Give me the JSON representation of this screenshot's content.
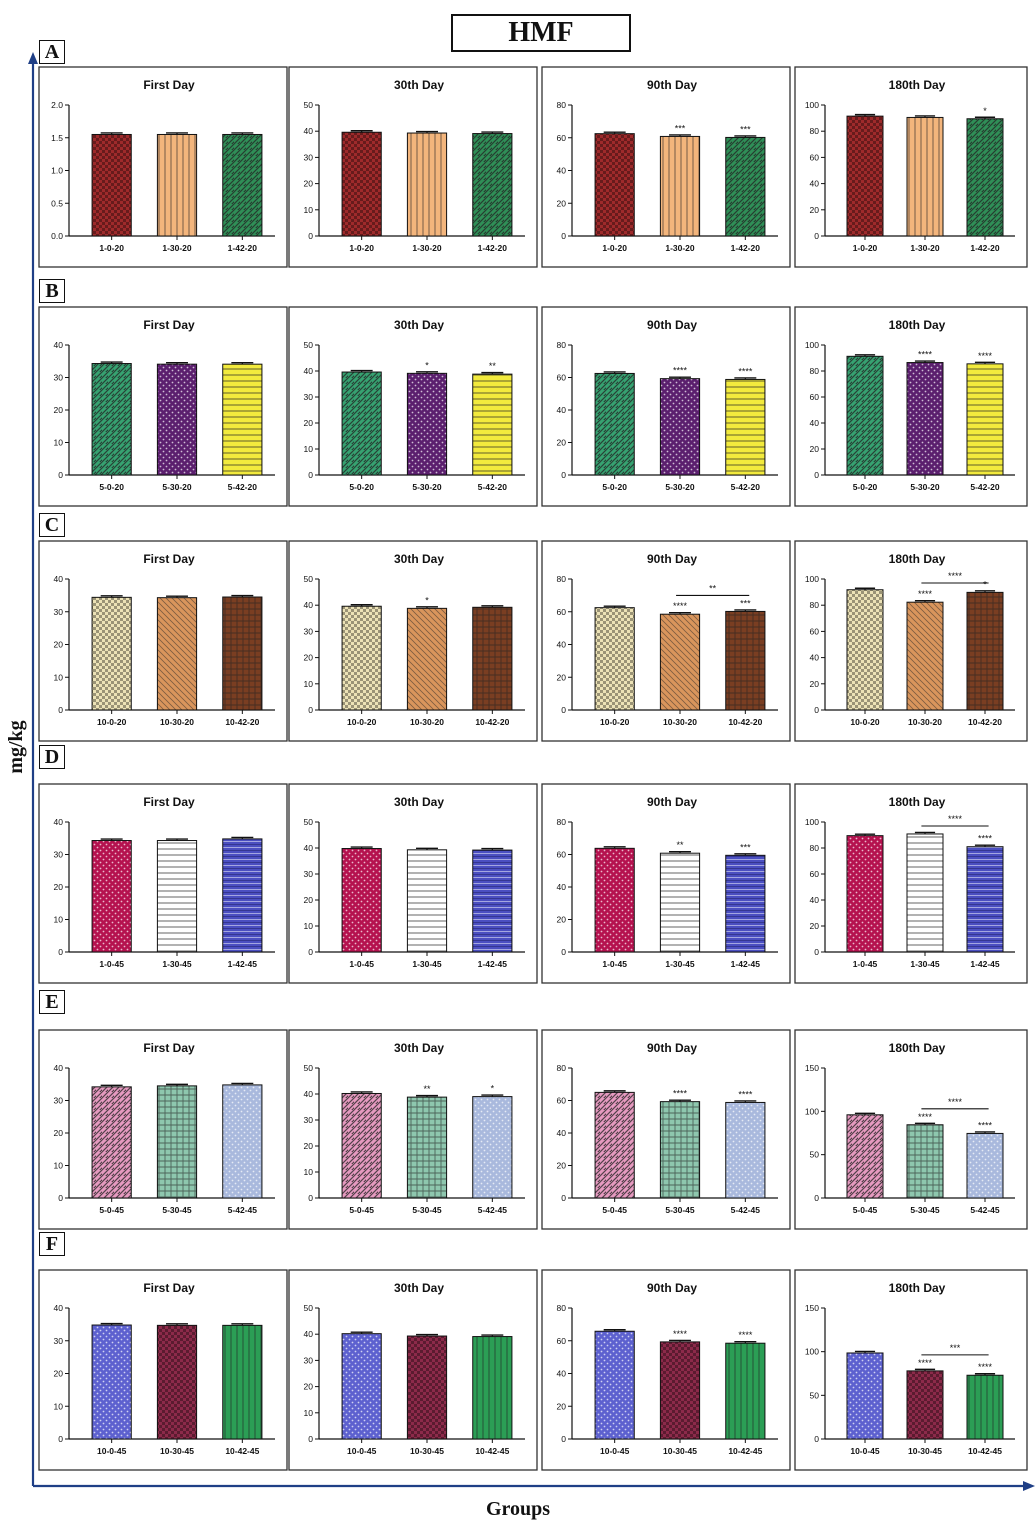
{
  "figure": {
    "title": "HMF",
    "ylabel": "mg/kg",
    "xlabel": "Groups",
    "panels": [
      "A",
      "B",
      "C",
      "D",
      "E",
      "F"
    ]
  },
  "colors": {
    "A": [
      "#9e2a2b",
      "#f3b57c",
      "#2f8f57"
    ],
    "B": [
      "#36a271",
      "#5b1f6e",
      "#f2ea3d"
    ],
    "C": [
      "#ece2b6",
      "#d9955c",
      "#7a3e22"
    ],
    "D": [
      "#b5124f",
      "#ffffff",
      "#4b4fc1"
    ],
    "E": [
      "#e69ac0",
      "#8ec7ae",
      "#a9b9dd"
    ],
    "F": [
      "#5d61cf",
      "#8c2a4a",
      "#2b9e55"
    ]
  },
  "chart_data": [
    {
      "type": "bar",
      "panel": "A",
      "title": "First Day",
      "categories": [
        "1-0-20",
        "1-30-20",
        "1-42-20"
      ],
      "values": [
        1.55,
        1.55,
        1.55
      ],
      "ylim": [
        0,
        2.0
      ],
      "yticks": [
        "0.0",
        "0.5",
        "1.0",
        "1.5",
        "2.0"
      ],
      "annotations": [
        "",
        "",
        ""
      ]
    },
    {
      "type": "bar",
      "panel": "A",
      "title": "30th Day",
      "categories": [
        "1-0-20",
        "1-30-20",
        "1-42-20"
      ],
      "values": [
        39.6,
        39.3,
        39.1
      ],
      "ylim": [
        0,
        50
      ],
      "yticks": [
        "0",
        "10",
        "20",
        "30",
        "40",
        "50"
      ],
      "annotations": [
        "",
        "",
        ""
      ]
    },
    {
      "type": "bar",
      "panel": "A",
      "title": "90th Day",
      "categories": [
        "1-0-20",
        "1-30-20",
        "1-42-20"
      ],
      "values": [
        62.5,
        60.8,
        60.2
      ],
      "ylim": [
        0,
        80
      ],
      "yticks": [
        "0",
        "20",
        "40",
        "60",
        "80"
      ],
      "annotations": [
        "",
        "***",
        "***"
      ]
    },
    {
      "type": "bar",
      "panel": "A",
      "title": "180th Day",
      "categories": [
        "1-0-20",
        "1-30-20",
        "1-42-20"
      ],
      "values": [
        91.5,
        90.5,
        89.5
      ],
      "ylim": [
        0,
        100
      ],
      "yticks": [
        "0",
        "20",
        "40",
        "60",
        "80",
        "100"
      ],
      "annotations": [
        "",
        "",
        "*"
      ]
    },
    {
      "type": "bar",
      "panel": "B",
      "title": "First Day",
      "categories": [
        "5-0-20",
        "5-30-20",
        "5-42-20"
      ],
      "values": [
        34.3,
        34.1,
        34.1
      ],
      "ylim": [
        0,
        40
      ],
      "yticks": [
        "0",
        "10",
        "20",
        "30",
        "40"
      ],
      "annotations": [
        "",
        "",
        ""
      ]
    },
    {
      "type": "bar",
      "panel": "B",
      "title": "30th Day",
      "categories": [
        "5-0-20",
        "5-30-20",
        "5-42-20"
      ],
      "values": [
        39.6,
        39.1,
        38.8
      ],
      "ylim": [
        0,
        50
      ],
      "yticks": [
        "0",
        "10",
        "20",
        "30",
        "40",
        "50"
      ],
      "annotations": [
        "",
        "*",
        "**"
      ]
    },
    {
      "type": "bar",
      "panel": "B",
      "title": "90th Day",
      "categories": [
        "5-0-20",
        "5-30-20",
        "5-42-20"
      ],
      "values": [
        62.5,
        59.3,
        58.8
      ],
      "ylim": [
        0,
        80
      ],
      "yticks": [
        "0",
        "20",
        "40",
        "60",
        "80"
      ],
      "annotations": [
        "",
        "****",
        "****"
      ]
    },
    {
      "type": "bar",
      "panel": "B",
      "title": "180th Day",
      "categories": [
        "5-0-20",
        "5-30-20",
        "5-42-20"
      ],
      "values": [
        91.3,
        86.5,
        85.5
      ],
      "ylim": [
        0,
        100
      ],
      "yticks": [
        "0",
        "20",
        "40",
        "60",
        "80",
        "100"
      ],
      "annotations": [
        "",
        "****",
        "****"
      ]
    },
    {
      "type": "bar",
      "panel": "C",
      "title": "First Day",
      "categories": [
        "10-0-20",
        "10-30-20",
        "10-42-20"
      ],
      "values": [
        34.4,
        34.3,
        34.5
      ],
      "ylim": [
        0,
        40
      ],
      "yticks": [
        "0",
        "10",
        "20",
        "30",
        "40"
      ],
      "annotations": [
        "",
        "",
        ""
      ]
    },
    {
      "type": "bar",
      "panel": "C",
      "title": "30th Day",
      "categories": [
        "10-0-20",
        "10-30-20",
        "10-42-20"
      ],
      "values": [
        39.6,
        38.8,
        39.2
      ],
      "ylim": [
        0,
        50
      ],
      "yticks": [
        "0",
        "10",
        "20",
        "30",
        "40",
        "50"
      ],
      "annotations": [
        "",
        "*",
        ""
      ]
    },
    {
      "type": "bar",
      "panel": "C",
      "title": "90th Day",
      "categories": [
        "10-0-20",
        "10-30-20",
        "10-42-20"
      ],
      "values": [
        62.5,
        58.5,
        60.2
      ],
      "ylim": [
        0,
        80
      ],
      "yticks": [
        "0",
        "20",
        "40",
        "60",
        "80"
      ],
      "annotations": [
        "",
        "****",
        "***"
      ],
      "bracket": {
        "from": 1,
        "to": 2,
        "label": "**"
      }
    },
    {
      "type": "bar",
      "panel": "C",
      "title": "180th Day",
      "categories": [
        "10-0-20",
        "10-30-20",
        "10-42-20"
      ],
      "values": [
        91.8,
        82.3,
        89.8
      ],
      "ylim": [
        0,
        100
      ],
      "yticks": [
        "0",
        "20",
        "40",
        "60",
        "80",
        "100"
      ],
      "annotations": [
        "",
        "****",
        "*"
      ],
      "bracket": {
        "from": 1,
        "to": 2,
        "label": "****"
      }
    },
    {
      "type": "bar",
      "panel": "D",
      "title": "First Day",
      "categories": [
        "1-0-45",
        "1-30-45",
        "1-42-45"
      ],
      "values": [
        34.3,
        34.3,
        34.8
      ],
      "ylim": [
        0,
        40
      ],
      "yticks": [
        "0",
        "10",
        "20",
        "30",
        "40"
      ],
      "annotations": [
        "",
        "",
        ""
      ]
    },
    {
      "type": "bar",
      "panel": "D",
      "title": "30th Day",
      "categories": [
        "1-0-45",
        "1-30-45",
        "1-42-45"
      ],
      "values": [
        39.8,
        39.3,
        39.2
      ],
      "ylim": [
        0,
        50
      ],
      "yticks": [
        "0",
        "10",
        "20",
        "30",
        "40",
        "50"
      ],
      "annotations": [
        "",
        "",
        ""
      ]
    },
    {
      "type": "bar",
      "panel": "D",
      "title": "90th Day",
      "categories": [
        "1-0-45",
        "1-30-45",
        "1-42-45"
      ],
      "values": [
        63.8,
        60.8,
        59.5
      ],
      "ylim": [
        0,
        80
      ],
      "yticks": [
        "0",
        "20",
        "40",
        "60",
        "80"
      ],
      "annotations": [
        "",
        "**",
        "***"
      ]
    },
    {
      "type": "bar",
      "panel": "D",
      "title": "180th Day",
      "categories": [
        "1-0-45",
        "1-30-45",
        "1-42-45"
      ],
      "values": [
        89.5,
        90.8,
        81.0
      ],
      "ylim": [
        0,
        100
      ],
      "yticks": [
        "0",
        "20",
        "40",
        "60",
        "80",
        "100"
      ],
      "annotations": [
        "",
        "",
        "****"
      ],
      "bracket": {
        "from": 1,
        "to": 2,
        "label": "****"
      }
    },
    {
      "type": "bar",
      "panel": "E",
      "title": "First Day",
      "categories": [
        "5-0-45",
        "5-30-45",
        "5-42-45"
      ],
      "values": [
        34.2,
        34.5,
        34.8
      ],
      "ylim": [
        0,
        40
      ],
      "yticks": [
        "0",
        "10",
        "20",
        "30",
        "40"
      ],
      "annotations": [
        "",
        "",
        ""
      ]
    },
    {
      "type": "bar",
      "panel": "E",
      "title": "30th Day",
      "categories": [
        "5-0-45",
        "5-30-45",
        "5-42-45"
      ],
      "values": [
        40.2,
        38.8,
        39.0
      ],
      "ylim": [
        0,
        50
      ],
      "yticks": [
        "0",
        "10",
        "20",
        "30",
        "40",
        "50"
      ],
      "annotations": [
        "",
        "**",
        "*"
      ]
    },
    {
      "type": "bar",
      "panel": "E",
      "title": "90th Day",
      "categories": [
        "5-0-45",
        "5-30-45",
        "5-42-45"
      ],
      "values": [
        65.0,
        59.3,
        58.8
      ],
      "ylim": [
        0,
        80
      ],
      "yticks": [
        "0",
        "20",
        "40",
        "60",
        "80"
      ],
      "annotations": [
        "",
        "****",
        "****"
      ]
    },
    {
      "type": "bar",
      "panel": "E",
      "title": "180th Day",
      "categories": [
        "5-0-45",
        "5-30-45",
        "5-42-45"
      ],
      "values": [
        96.0,
        84.5,
        74.5
      ],
      "ylim": [
        0,
        150
      ],
      "yticks": [
        "0",
        "50",
        "100",
        "150"
      ],
      "annotations": [
        "",
        "****",
        "****"
      ],
      "bracket": {
        "from": 1,
        "to": 2,
        "label": "****"
      }
    },
    {
      "type": "bar",
      "panel": "F",
      "title": "First Day",
      "categories": [
        "10-0-45",
        "10-30-45",
        "10-42-45"
      ],
      "values": [
        34.8,
        34.7,
        34.7
      ],
      "ylim": [
        0,
        40
      ],
      "yticks": [
        "0",
        "10",
        "20",
        "30",
        "40"
      ],
      "annotations": [
        "",
        "",
        ""
      ]
    },
    {
      "type": "bar",
      "panel": "F",
      "title": "30th Day",
      "categories": [
        "10-0-45",
        "10-30-45",
        "10-42-45"
      ],
      "values": [
        40.2,
        39.3,
        39.1
      ],
      "ylim": [
        0,
        50
      ],
      "yticks": [
        "0",
        "10",
        "20",
        "30",
        "40",
        "50"
      ],
      "annotations": [
        "",
        "",
        ""
      ]
    },
    {
      "type": "bar",
      "panel": "F",
      "title": "90th Day",
      "categories": [
        "10-0-45",
        "10-30-45",
        "10-42-45"
      ],
      "values": [
        65.8,
        59.3,
        58.5
      ],
      "ylim": [
        0,
        80
      ],
      "yticks": [
        "0",
        "20",
        "40",
        "60",
        "80"
      ],
      "annotations": [
        "",
        "****",
        "****"
      ]
    },
    {
      "type": "bar",
      "panel": "F",
      "title": "180th Day",
      "categories": [
        "10-0-45",
        "10-30-45",
        "10-42-45"
      ],
      "values": [
        98.5,
        78.0,
        73.0
      ],
      "ylim": [
        0,
        150
      ],
      "yticks": [
        "0",
        "50",
        "100",
        "150"
      ],
      "annotations": [
        "",
        "****",
        "****"
      ],
      "bracket": {
        "from": 1,
        "to": 2,
        "label": "***"
      }
    }
  ]
}
